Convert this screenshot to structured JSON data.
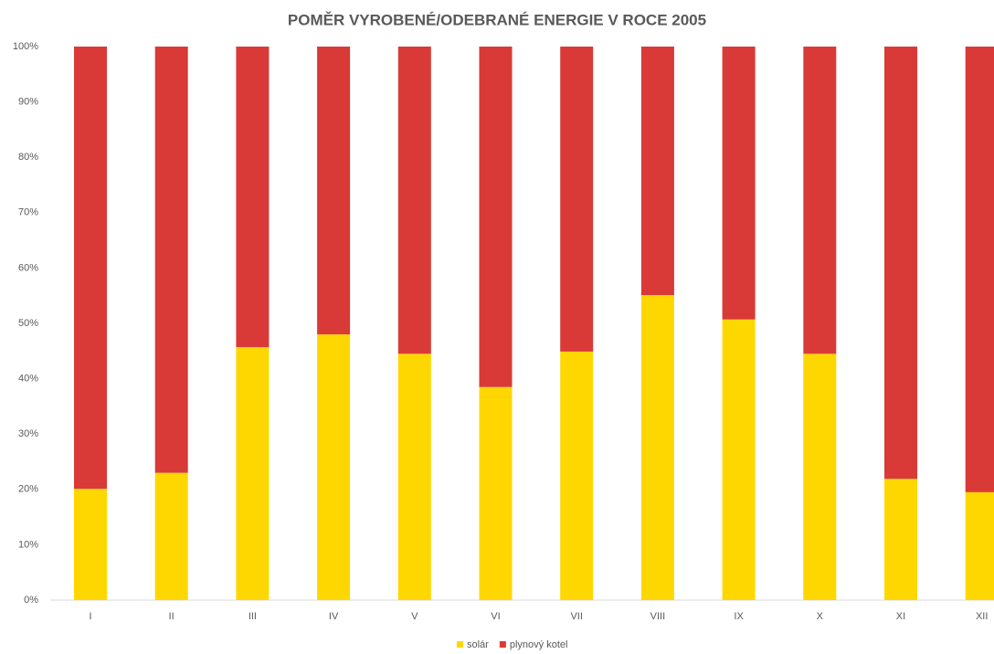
{
  "chart_data": {
    "type": "stacked_bar",
    "title": "POMĚR VYROBENÉ/ODEBRANÉ ENERGIE V ROCE 2005",
    "categories": [
      "I",
      "II",
      "III",
      "IV",
      "V",
      "VI",
      "VII",
      "VIII",
      "IX",
      "X",
      "XI",
      "XII"
    ],
    "series": [
      {
        "name": "solár",
        "color": "#ffd700",
        "values": [
          20.1,
          23,
          45.7,
          48,
          44.5,
          38.5,
          44.9,
          55.1,
          50.7,
          44.5,
          21.9,
          19.5
        ]
      },
      {
        "name": "plynový kotel",
        "color": "#d93a37",
        "values": [
          79.9,
          77,
          54.3,
          52,
          55.5,
          61.5,
          55.1,
          44.9,
          49.3,
          55.5,
          78.1,
          80.5
        ]
      }
    ],
    "ylim": [
      0,
      100
    ],
    "yticks": [
      {
        "value": 0,
        "label": "0%"
      },
      {
        "value": 10,
        "label": "10%"
      },
      {
        "value": 20,
        "label": "20%"
      },
      {
        "value": 30,
        "label": "30%"
      },
      {
        "value": 40,
        "label": "40%"
      },
      {
        "value": 50,
        "label": "50%"
      },
      {
        "value": 60,
        "label": "60%"
      },
      {
        "value": 70,
        "label": "70%"
      },
      {
        "value": 80,
        "label": "80%"
      },
      {
        "value": 90,
        "label": "90%"
      },
      {
        "value": 100,
        "label": "100%"
      }
    ],
    "legend": "bottom"
  }
}
